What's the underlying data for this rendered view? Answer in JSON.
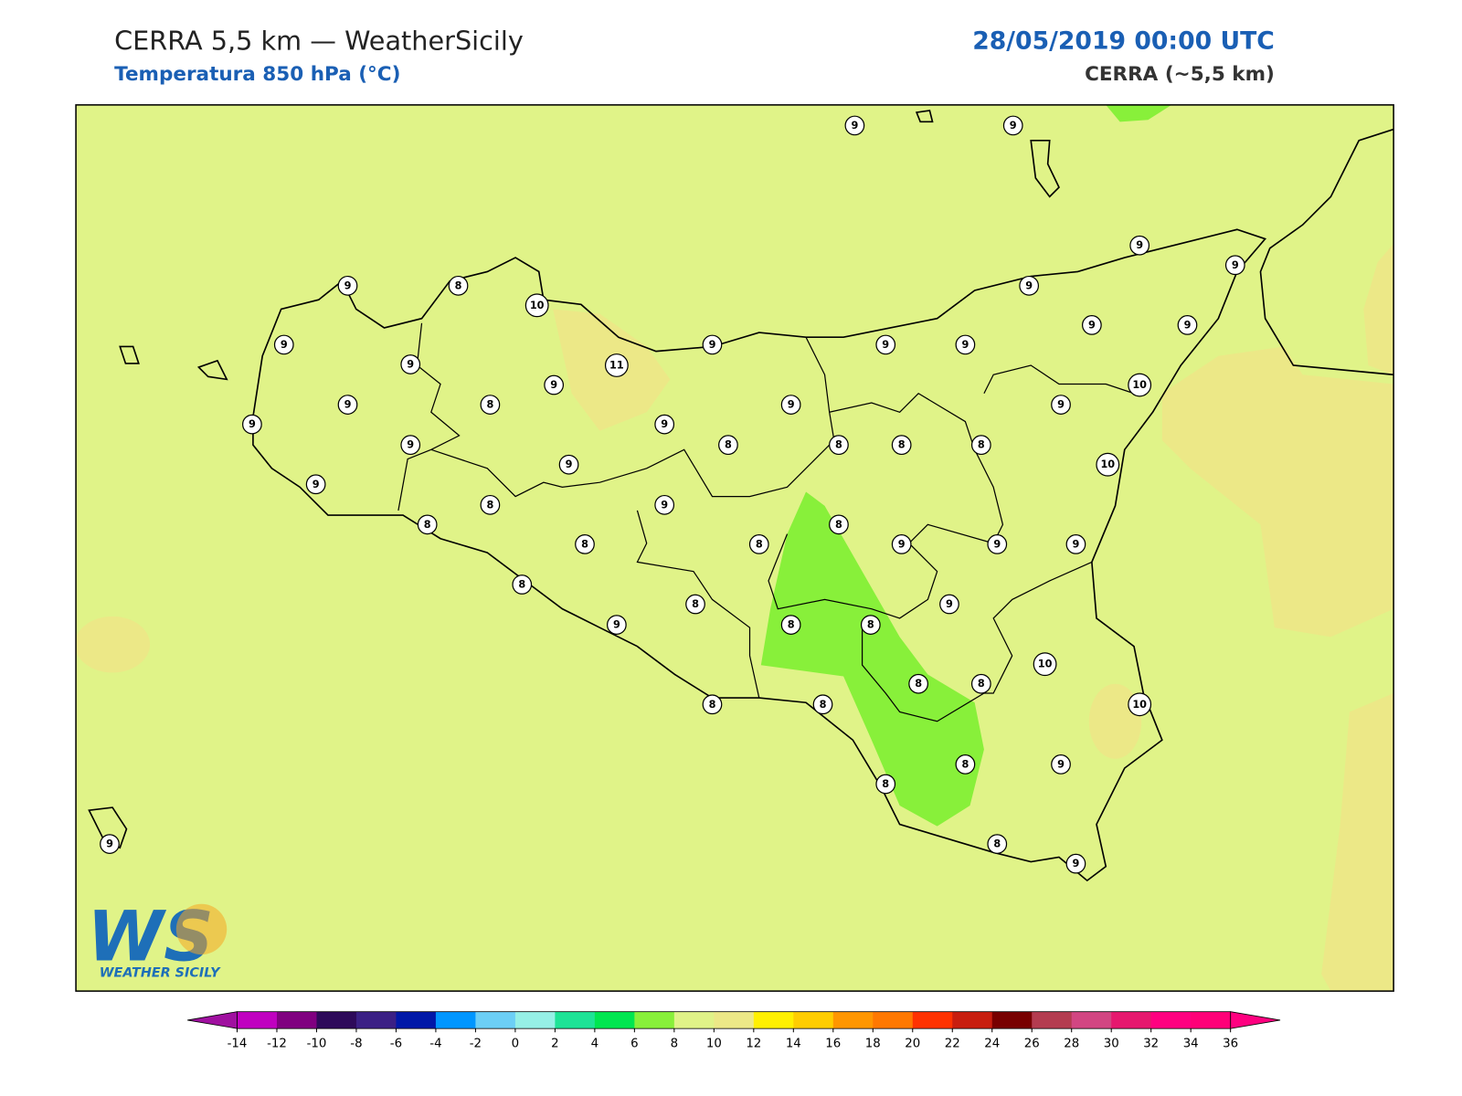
{
  "header": {
    "title": "CERRA 5,5 km — WeatherSicily",
    "subtitle": "Temperatura 850 hPa (°C)",
    "datetime": "28/05/2019 00:00 UTC",
    "model": "CERRA (~5,5 km)"
  },
  "stations": [
    9,
    9,
    9,
    9,
    9,
    8,
    10,
    9,
    9,
    9,
    9,
    9,
    9,
    9,
    9,
    11,
    9,
    10,
    9,
    8,
    9,
    9,
    9,
    9,
    9,
    8,
    8,
    8,
    8,
    9,
    10,
    9,
    8,
    9,
    8,
    8,
    8,
    8,
    9,
    9,
    9,
    8,
    8,
    9,
    8,
    8,
    9,
    10,
    8,
    8,
    8,
    8,
    10,
    8,
    9,
    8,
    8,
    9,
    9
  ],
  "colorbar": {
    "ticks": [
      -14,
      -12,
      -10,
      -8,
      -6,
      -4,
      -2,
      0,
      2,
      4,
      6,
      8,
      10,
      12,
      14,
      16,
      18,
      20,
      22,
      24,
      26,
      28,
      30,
      32,
      34,
      36
    ],
    "colors": [
      "#c000c0",
      "#800080",
      "#2e0a5a",
      "#3b2085",
      "#0018a8",
      "#0096ff",
      "#6ccff6",
      "#96f0e6",
      "#1ee396",
      "#00e650",
      "#88f03a",
      "#e0f388",
      "#ece887",
      "#fff000",
      "#ffcd00",
      "#ff9600",
      "#ff7800",
      "#ff3200",
      "#c81e0f",
      "#780000",
      "#b43c50",
      "#d24682",
      "#e6186e",
      "#ff0080",
      "#ff0078"
    ],
    "under": "#a010a0",
    "over": "#ff0080"
  },
  "logo": {
    "mark": "WS",
    "text": "WEATHER SICILY"
  }
}
